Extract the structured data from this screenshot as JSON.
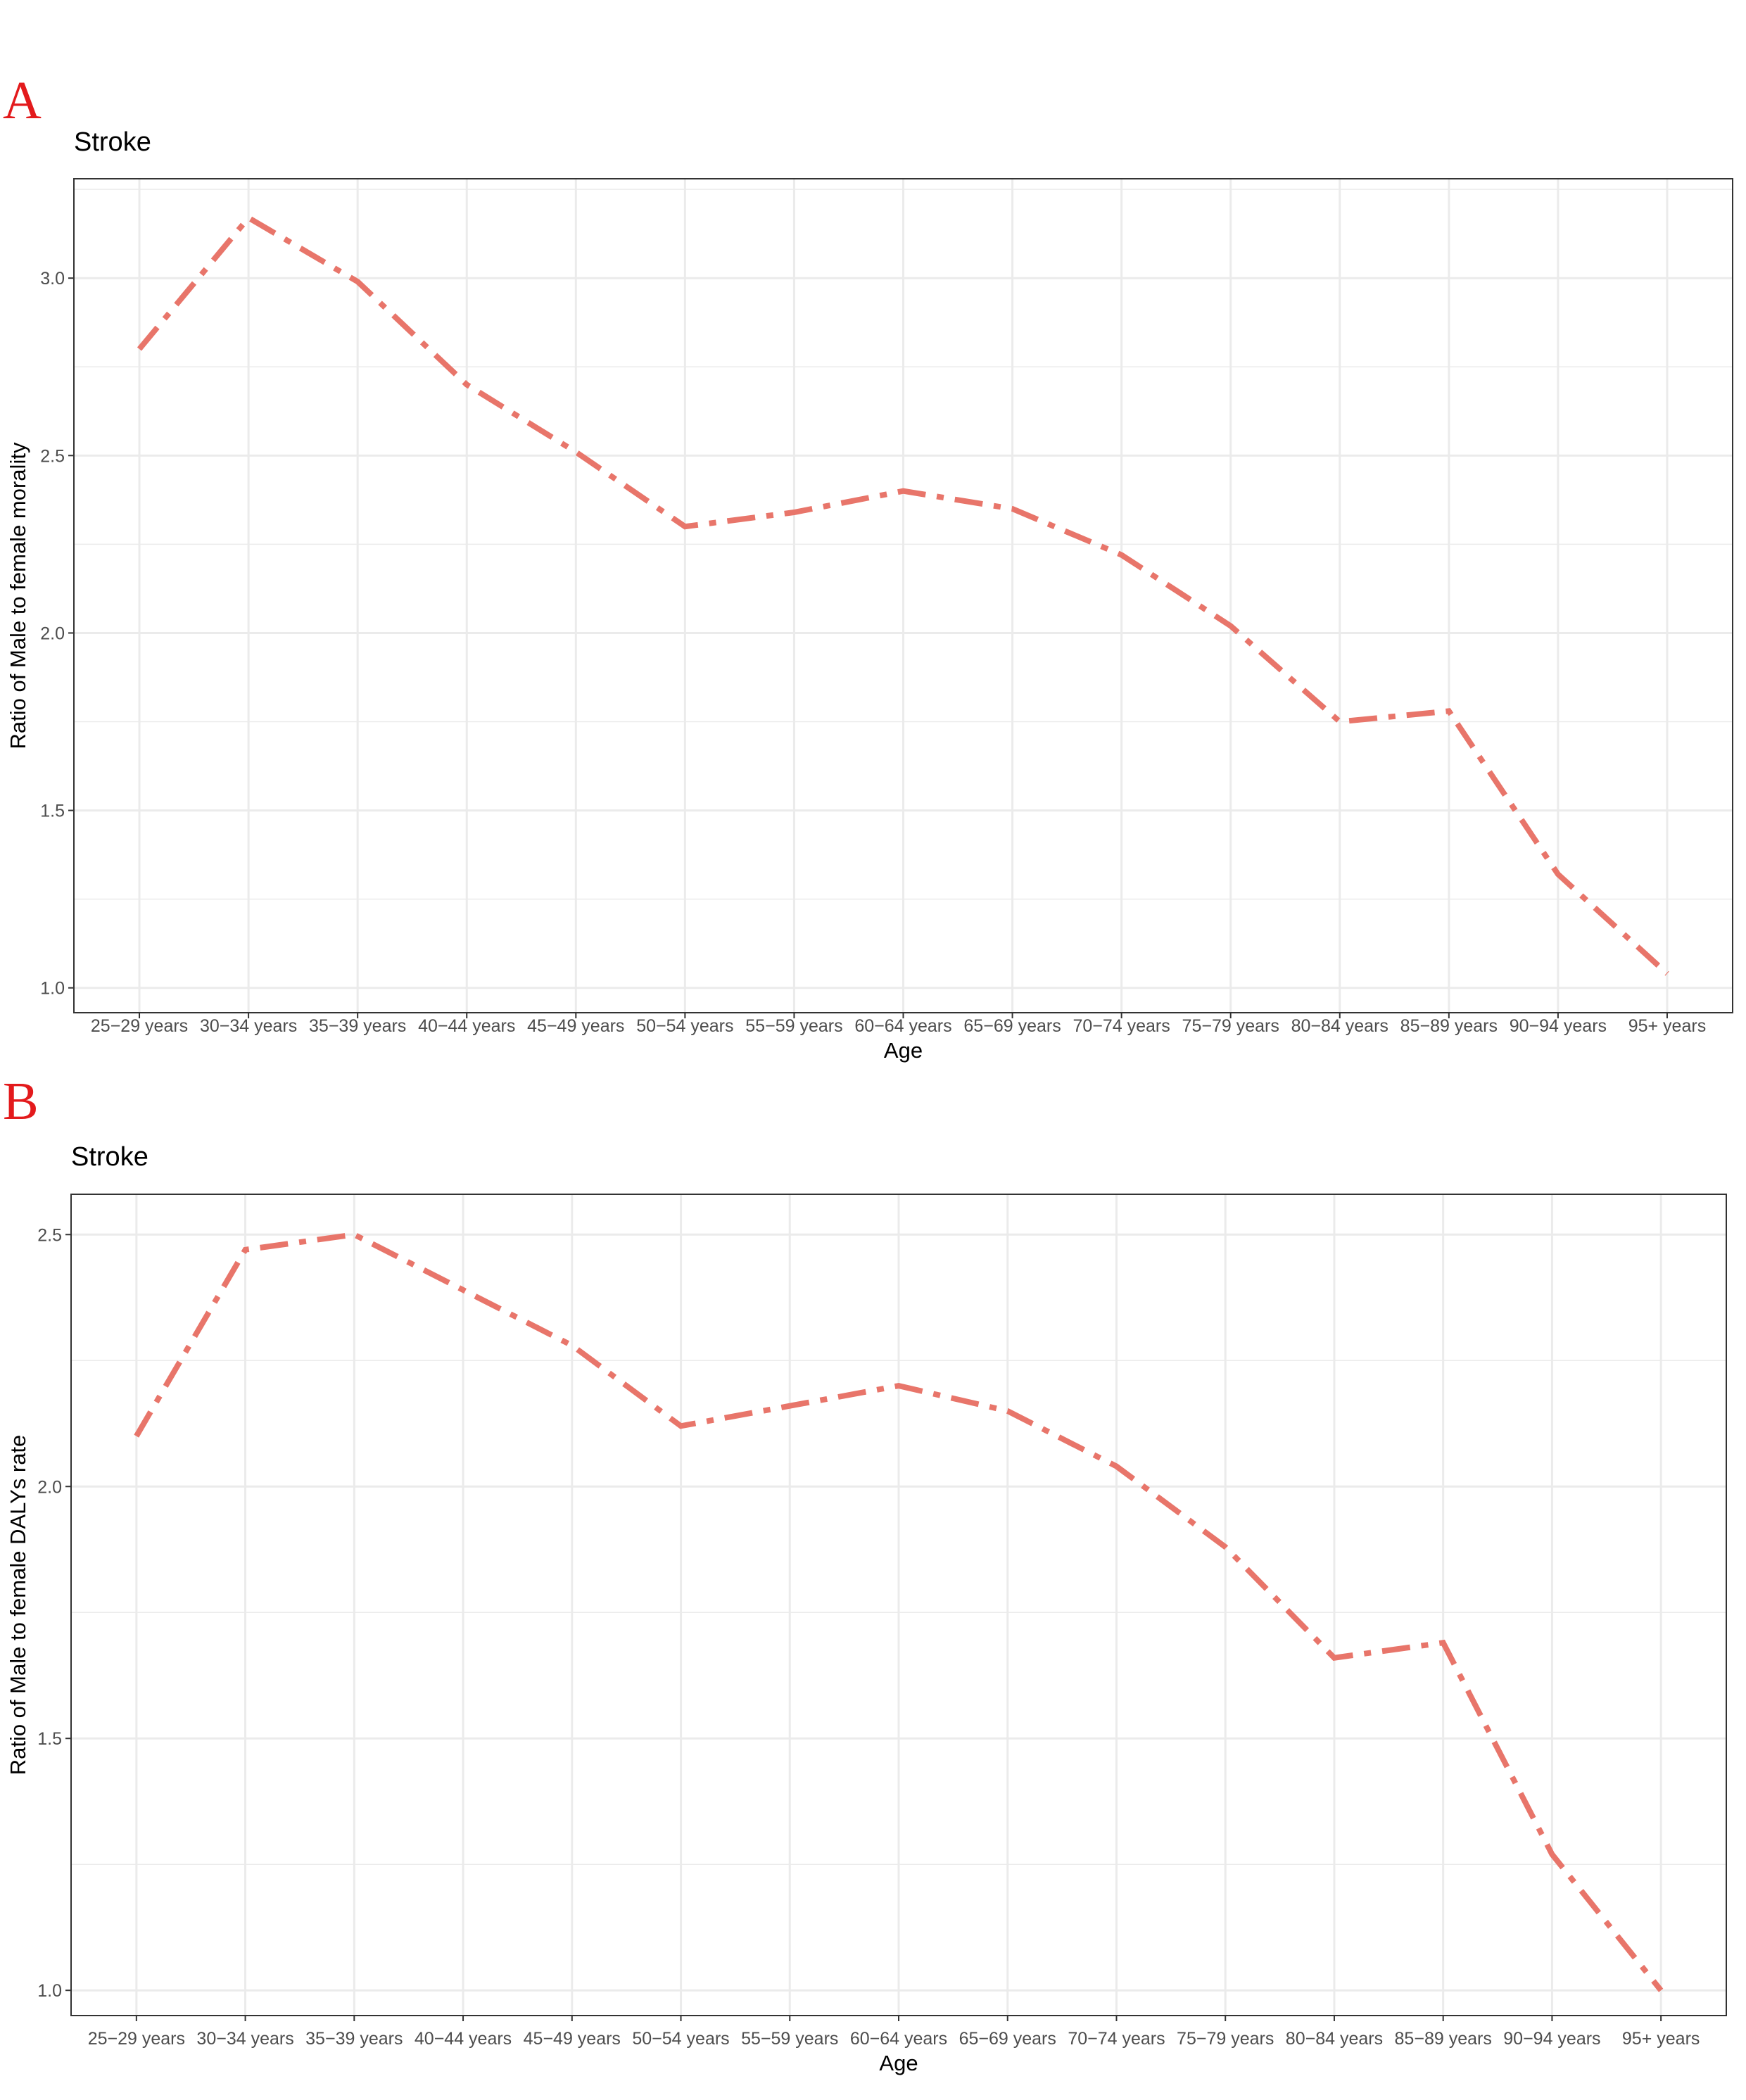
{
  "chart_data": [
    {
      "type": "line",
      "panel_label": "A",
      "title": "Stroke",
      "xlabel": "Age",
      "ylabel": "Ratio of Male to female morality",
      "categories": [
        "25−29 years",
        "30−34 years",
        "35−39 years",
        "40−44 years",
        "45−49 years",
        "50−54 years",
        "55−59 years",
        "60−64 years",
        "65−69 years",
        "70−74 years",
        "75−79 years",
        "80−84 years",
        "85−89 years",
        "90−94 years",
        "95+ years"
      ],
      "values": [
        2.8,
        3.17,
        2.99,
        2.7,
        2.51,
        2.3,
        2.34,
        2.4,
        2.35,
        2.22,
        2.02,
        1.75,
        1.78,
        1.32,
        1.04
      ],
      "color": "#e8756a",
      "linetype": "dotdash",
      "ylim": [
        0.93,
        3.28
      ],
      "yticks": [
        {
          "value": 1,
          "label": "1.0"
        },
        1.5,
        {
          "value": 2,
          "label": "2.0"
        },
        2.5,
        {
          "value": 3,
          "label": "3.0"
        }
      ],
      "grid": true
    },
    {
      "type": "line",
      "panel_label": "B",
      "title": "Stroke",
      "xlabel": "Age",
      "ylabel": "Ratio of Male to female DALYs rate",
      "categories": [
        "25−29 years",
        "30−34 years",
        "35−39 years",
        "40−44 years",
        "45−49 years",
        "50−54 years",
        "55−59 years",
        "60−64 years",
        "65−69 years",
        "70−74 years",
        "75−79 years",
        "80−84 years",
        "85−89 years",
        "90−94 years",
        "95+ years"
      ],
      "values": [
        2.1,
        2.47,
        2.5,
        2.39,
        2.28,
        2.12,
        2.16,
        2.2,
        2.15,
        2.04,
        1.88,
        1.66,
        1.69,
        1.27,
        1.0
      ],
      "color": "#e8756a",
      "linetype": "dotdash",
      "ylim": [
        0.95,
        2.58
      ],
      "yticks": [
        {
          "value": 1,
          "label": "1.0"
        },
        1.5,
        {
          "value": 2,
          "label": "2.0"
        },
        2.5
      ],
      "grid": true
    }
  ]
}
